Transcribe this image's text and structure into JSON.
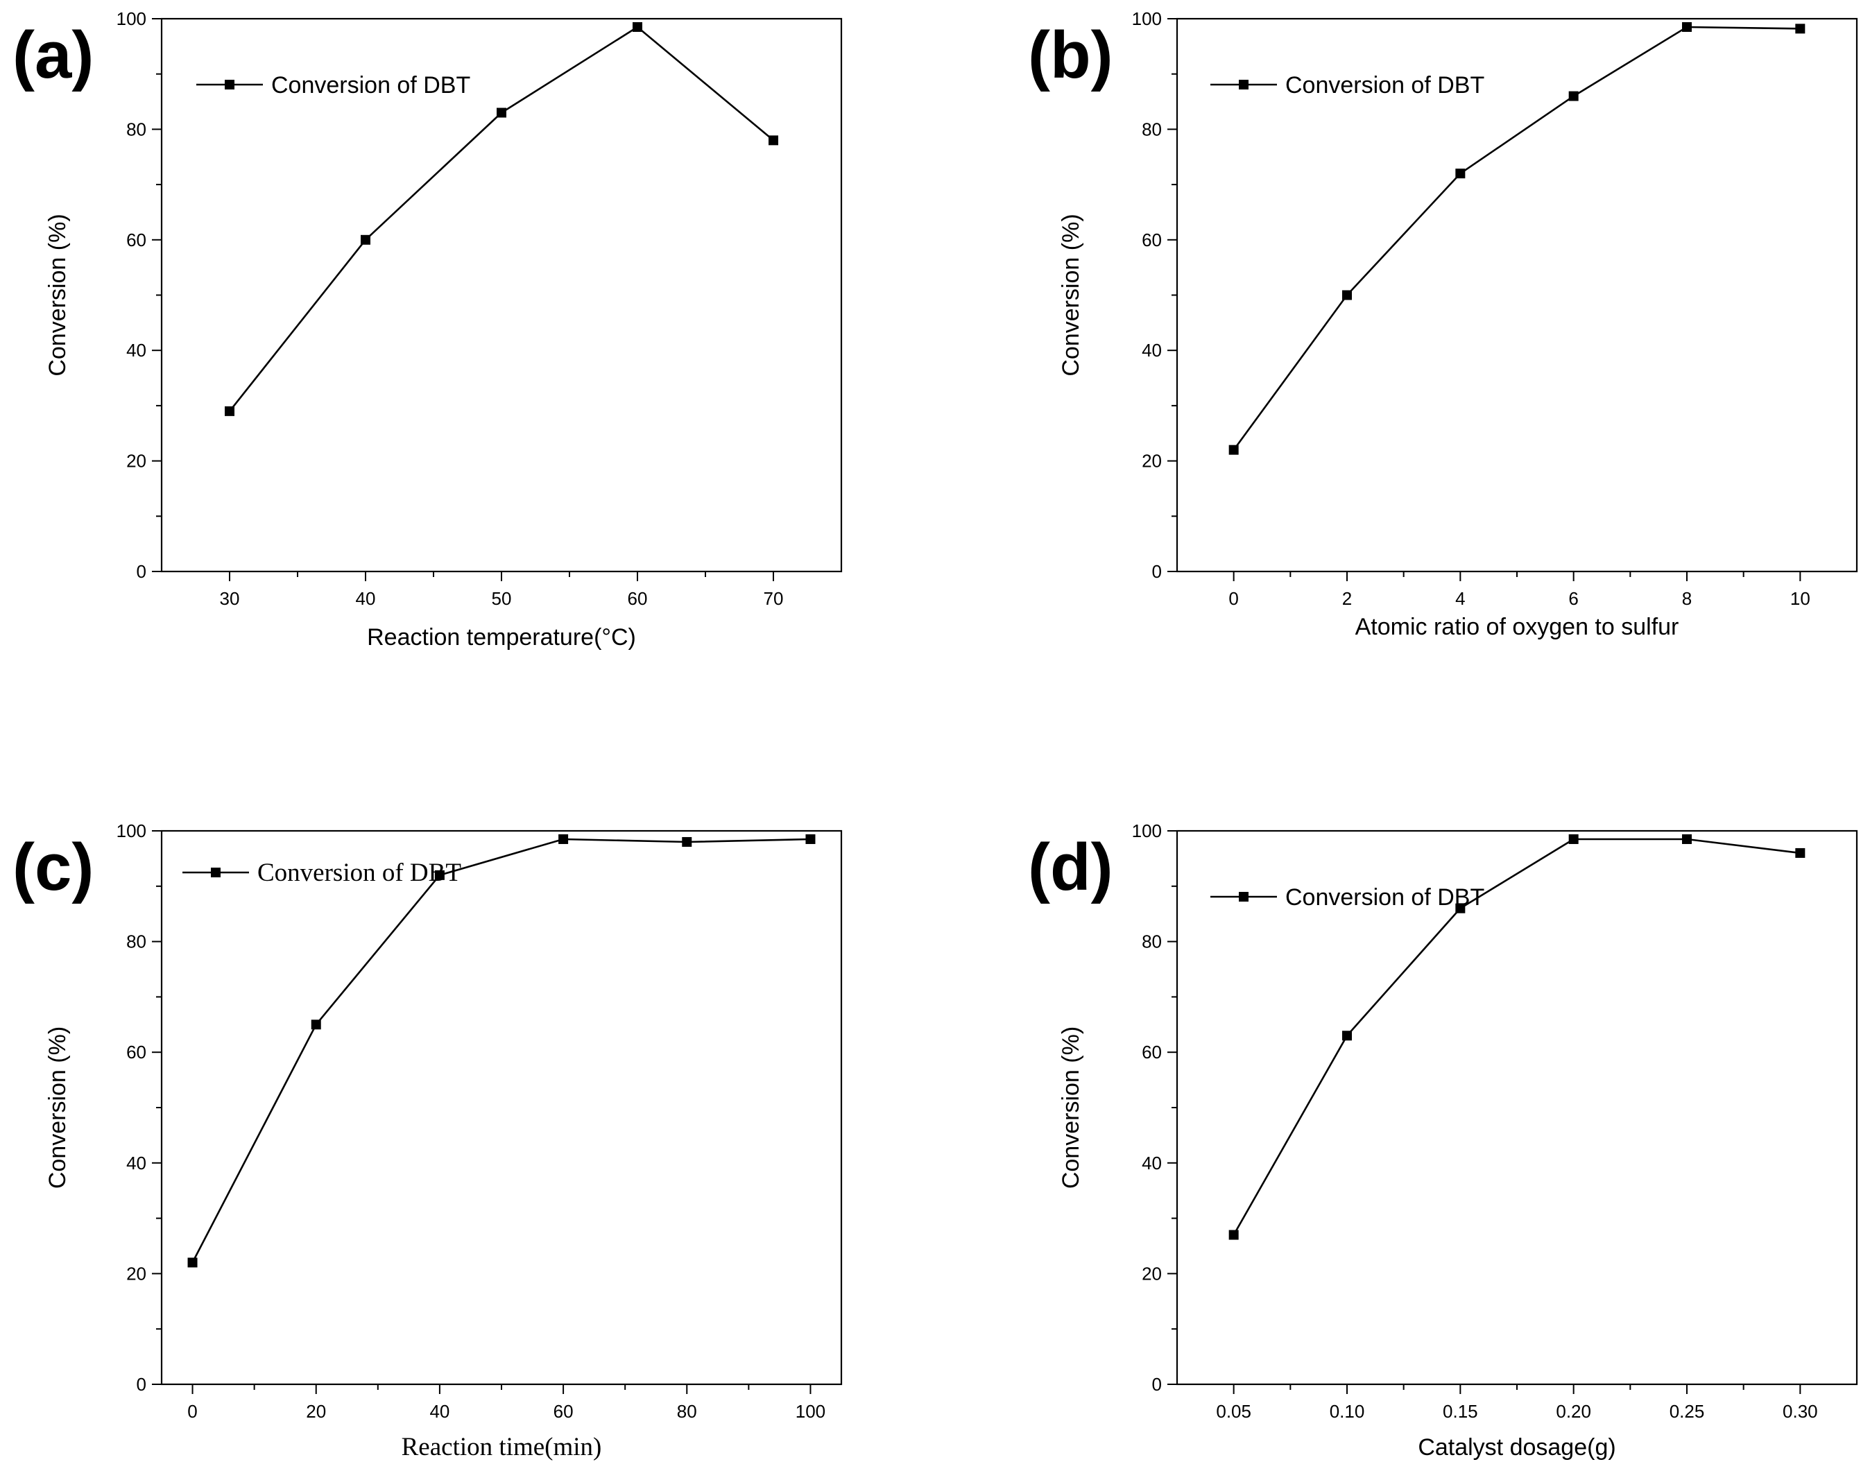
{
  "chart_data": [
    {
      "panel": "(a)",
      "type": "line",
      "xlabel": "Reaction temperature(°C)",
      "ylabel": "Conversion (%)",
      "x": [
        30,
        40,
        50,
        60,
        70
      ],
      "x_tick_labels": [
        "30",
        "40",
        "50",
        "60",
        "70"
      ],
      "y_tick_labels": [
        "0",
        "20",
        "40",
        "60",
        "80",
        "100"
      ],
      "xlim": [
        25,
        75
      ],
      "ylim": [
        0,
        100
      ],
      "series": [
        {
          "name": "Conversion of DBT",
          "values": [
            29,
            60,
            83,
            98.5,
            78
          ]
        }
      ],
      "legend_position": "top-left"
    },
    {
      "panel": "(b)",
      "type": "line",
      "xlabel": "Atomic ratio of oxygen to sulfur",
      "ylabel": "Conversion (%)",
      "x": [
        0,
        2,
        4,
        6,
        8,
        10
      ],
      "x_tick_labels": [
        "0",
        "2",
        "4",
        "6",
        "8",
        "10"
      ],
      "y_tick_labels": [
        "0",
        "20",
        "40",
        "60",
        "80",
        "100"
      ],
      "xlim": [
        -1,
        11
      ],
      "ylim": [
        0,
        100
      ],
      "series": [
        {
          "name": "Conversion of DBT",
          "values": [
            22,
            50,
            72,
            86,
            98.5,
            98.2
          ]
        }
      ],
      "legend_position": "top-left"
    },
    {
      "panel": "(c)",
      "type": "line",
      "xlabel": "Reaction time(min)",
      "ylabel": "Conversion (%)",
      "x": [
        0,
        20,
        40,
        60,
        80,
        100
      ],
      "x_tick_labels": [
        "0",
        "20",
        "40",
        "60",
        "80",
        "100"
      ],
      "y_tick_labels": [
        "0",
        "20",
        "40",
        "60",
        "80",
        "100"
      ],
      "xlim": [
        -5,
        105
      ],
      "ylim": [
        0,
        100
      ],
      "series": [
        {
          "name": "Conversion of DBT",
          "values": [
            22,
            65,
            92,
            98.5,
            98,
            98.5
          ]
        }
      ],
      "legend_position": "top-left"
    },
    {
      "panel": "(d)",
      "type": "line",
      "xlabel": "Catalyst dosage(g)",
      "ylabel": "Conversion (%)",
      "x": [
        0.05,
        0.1,
        0.15,
        0.2,
        0.25,
        0.3
      ],
      "x_tick_labels": [
        "0.05",
        "0.10",
        "0.15",
        "0.20",
        "0.25",
        "0.30"
      ],
      "y_tick_labels": [
        "0",
        "20",
        "40",
        "60",
        "80",
        "100"
      ],
      "xlim": [
        0.025,
        0.325
      ],
      "ylim": [
        0,
        100
      ],
      "series": [
        {
          "name": "Conversion of DBT",
          "values": [
            27,
            63,
            86,
            98.5,
            98.5,
            96
          ]
        }
      ],
      "legend_position": "top-left"
    }
  ]
}
